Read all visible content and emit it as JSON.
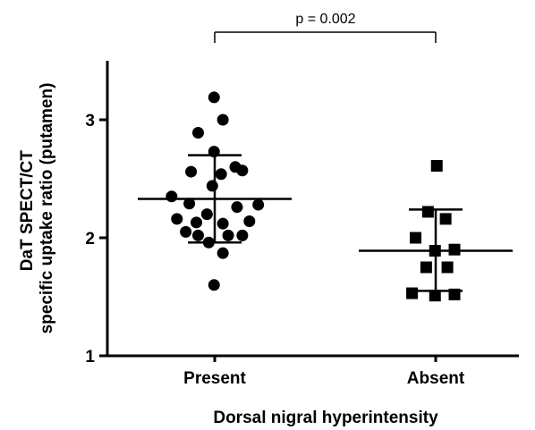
{
  "chart_data": {
    "type": "scatter",
    "xlabel": "Dorsal nigral hyperintensity",
    "ylabel_lines": [
      "DaT SPECT/CT",
      "specific uptake ratio (putamen)"
    ],
    "ylim": [
      1,
      3.5
    ],
    "yticks": [
      "1",
      "2",
      "3"
    ],
    "categories": [
      "Present",
      "Absent"
    ],
    "series": [
      {
        "category": "Present",
        "marker": "circle",
        "mean": 2.33,
        "sd_upper": 2.7,
        "sd_lower": 1.96,
        "points": [
          {
            "x": -0.003,
            "y": 3.19
          },
          {
            "x": 0.037,
            "y": 3.0
          },
          {
            "x": -0.075,
            "y": 2.89
          },
          {
            "x": -0.003,
            "y": 2.73
          },
          {
            "x": 0.093,
            "y": 2.6
          },
          {
            "x": -0.107,
            "y": 2.56
          },
          {
            "x": 0.125,
            "y": 2.57
          },
          {
            "x": 0.029,
            "y": 2.54
          },
          {
            "x": -0.011,
            "y": 2.44
          },
          {
            "x": -0.195,
            "y": 2.35
          },
          {
            "x": -0.115,
            "y": 2.29
          },
          {
            "x": 0.197,
            "y": 2.28
          },
          {
            "x": 0.101,
            "y": 2.26
          },
          {
            "x": -0.035,
            "y": 2.2
          },
          {
            "x": -0.171,
            "y": 2.16
          },
          {
            "x": 0.157,
            "y": 2.14
          },
          {
            "x": -0.083,
            "y": 2.13
          },
          {
            "x": 0.037,
            "y": 2.12
          },
          {
            "x": -0.131,
            "y": 2.05
          },
          {
            "x": 0.125,
            "y": 2.02
          },
          {
            "x": -0.075,
            "y": 2.02
          },
          {
            "x": 0.061,
            "y": 2.02
          },
          {
            "x": -0.027,
            "y": 1.96
          },
          {
            "x": 0.037,
            "y": 1.87
          },
          {
            "x": -0.003,
            "y": 1.6
          }
        ]
      },
      {
        "category": "Absent",
        "marker": "square",
        "mean": 1.89,
        "sd_upper": 2.24,
        "sd_lower": 1.55,
        "points": [
          {
            "x": 0.005,
            "y": 2.61
          },
          {
            "x": -0.035,
            "y": 2.22
          },
          {
            "x": 0.045,
            "y": 2.16
          },
          {
            "x": -0.091,
            "y": 2.0
          },
          {
            "x": 0.085,
            "y": 1.9
          },
          {
            "x": -0.003,
            "y": 1.89
          },
          {
            "x": -0.043,
            "y": 1.75
          },
          {
            "x": 0.053,
            "y": 1.75
          },
          {
            "x": -0.107,
            "y": 1.53
          },
          {
            "x": -0.003,
            "y": 1.51
          },
          {
            "x": 0.085,
            "y": 1.52
          }
        ]
      }
    ],
    "annotation": {
      "text": "p = 0.002",
      "from": "Present",
      "to": "Absent"
    }
  }
}
